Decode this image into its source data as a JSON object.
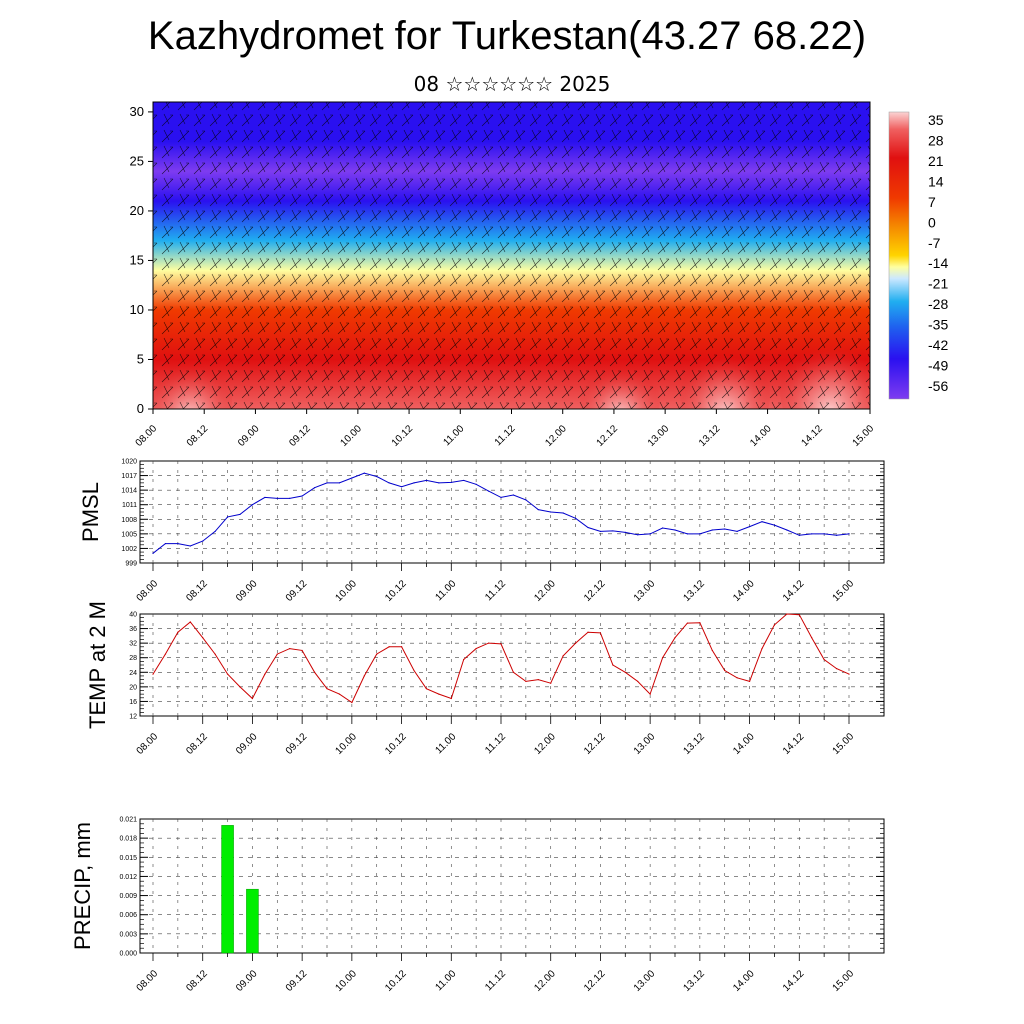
{
  "title": "Kazhydromet for Turkestan(43.27 68.22)",
  "subtitle": "08 ☆☆☆☆☆☆ 2025",
  "time_ticks": [
    "08.00",
    "08.12",
    "09.00",
    "09.12",
    "10.00",
    "10.12",
    "11.00",
    "11.12",
    "12.00",
    "12.12",
    "13.00",
    "13.12",
    "14.00",
    "14.12",
    "15.00"
  ],
  "chart_data": [
    {
      "type": "heatmap",
      "name": "vertical-section",
      "ylim": [
        0,
        31
      ],
      "yticks": [
        0,
        5,
        10,
        15,
        20,
        25,
        30
      ],
      "colorbar": {
        "labels": [
          "35",
          "28",
          "21",
          "14",
          "7",
          "0",
          "-7",
          "-14",
          "-21",
          "-28",
          "-35",
          "-42",
          "-49",
          "-56"
        ]
      },
      "bands": [
        {
          "y": 0,
          "value": 30
        },
        {
          "y": 5,
          "value": 24
        },
        {
          "y": 10,
          "value": 14
        },
        {
          "y": 14,
          "value": -4
        },
        {
          "y": 17,
          "value": -20
        },
        {
          "y": 21,
          "value": -40
        },
        {
          "y": 24,
          "value": -58
        },
        {
          "y": 27,
          "value": -52
        },
        {
          "y": 31,
          "value": -50
        }
      ]
    },
    {
      "type": "line",
      "name": "pmsl",
      "ylabel": "PMSL",
      "ylim": [
        999,
        1020
      ],
      "yticks": [
        999,
        1002,
        1005,
        1008,
        1011,
        1014,
        1017,
        1020
      ],
      "color": "#0000cc",
      "x": [
        0,
        3,
        6,
        9,
        12,
        15,
        18,
        21,
        24,
        27,
        30,
        33,
        36,
        39,
        42,
        45,
        48,
        51,
        54,
        57,
        60,
        63,
        66,
        69,
        72,
        75,
        78,
        81,
        84,
        87,
        90,
        93,
        96,
        99,
        102,
        105,
        108,
        111,
        114,
        117,
        120,
        123,
        126,
        129,
        132,
        135,
        138,
        141,
        144,
        147,
        150,
        153,
        156,
        159,
        162,
        165,
        168
      ],
      "values": [
        1001,
        1003,
        1003,
        1002.5,
        1003.5,
        1005.5,
        1008.5,
        1009,
        1011,
        1012.5,
        1012.3,
        1012.3,
        1012.8,
        1014.5,
        1015.5,
        1015.5,
        1016.5,
        1017.5,
        1016.8,
        1015.5,
        1014.7,
        1015.5,
        1016,
        1015.5,
        1015.6,
        1016,
        1015.2,
        1013.8,
        1012.5,
        1013,
        1012,
        1010,
        1009.5,
        1009.3,
        1008.2,
        1006.3,
        1005.5,
        1005.6,
        1005.3,
        1004.8,
        1005,
        1006.2,
        1005.8,
        1005,
        1005,
        1005.8,
        1006,
        1005.5,
        1006.5,
        1007.5,
        1006.8,
        1005.8,
        1004.7,
        1005,
        1005,
        1004.7,
        1005
      ]
    },
    {
      "type": "line",
      "name": "temp2m",
      "ylabel": "TEMP at 2 M",
      "ylim": [
        12,
        40
      ],
      "yticks": [
        12,
        16,
        20,
        24,
        28,
        32,
        36,
        40
      ],
      "color": "#cc0000",
      "x": [
        0,
        3,
        6,
        9,
        12,
        15,
        18,
        21,
        24,
        27,
        30,
        33,
        36,
        39,
        42,
        45,
        48,
        51,
        54,
        57,
        60,
        63,
        66,
        69,
        72,
        75,
        78,
        81,
        84,
        87,
        90,
        93,
        96,
        99,
        102,
        105,
        108,
        111,
        114,
        117,
        120,
        123,
        126,
        129,
        132,
        135,
        138,
        141,
        144,
        147,
        150,
        153,
        156,
        159,
        162,
        165,
        168
      ],
      "values": [
        23.5,
        29,
        35,
        37.8,
        33.5,
        29,
        23.5,
        20,
        16.8,
        23.5,
        29,
        30.5,
        30,
        24,
        19.5,
        18,
        15.7,
        23,
        29,
        31,
        31,
        24.5,
        19.5,
        18,
        16.8,
        27.5,
        30.5,
        32,
        31.8,
        24,
        21.5,
        22,
        21,
        28.5,
        32,
        35,
        34.8,
        26,
        24,
        21.5,
        18,
        28,
        33.5,
        37.5,
        37.6,
        30,
        24.5,
        22.5,
        21.5,
        30.5,
        37,
        40,
        39.8,
        33.5,
        27.5,
        25,
        23.5
      ]
    },
    {
      "type": "bar",
      "name": "precip",
      "ylabel": "PRECIP, mm",
      "ylim": [
        0,
        0.021
      ],
      "yticks": [
        "0.000",
        "0.003",
        "0.006",
        "0.009",
        "0.012",
        "0.015",
        "0.018",
        "0.021"
      ],
      "color": "#00ee00",
      "x": [
        18,
        24
      ],
      "values": [
        0.02,
        0.01
      ]
    }
  ]
}
